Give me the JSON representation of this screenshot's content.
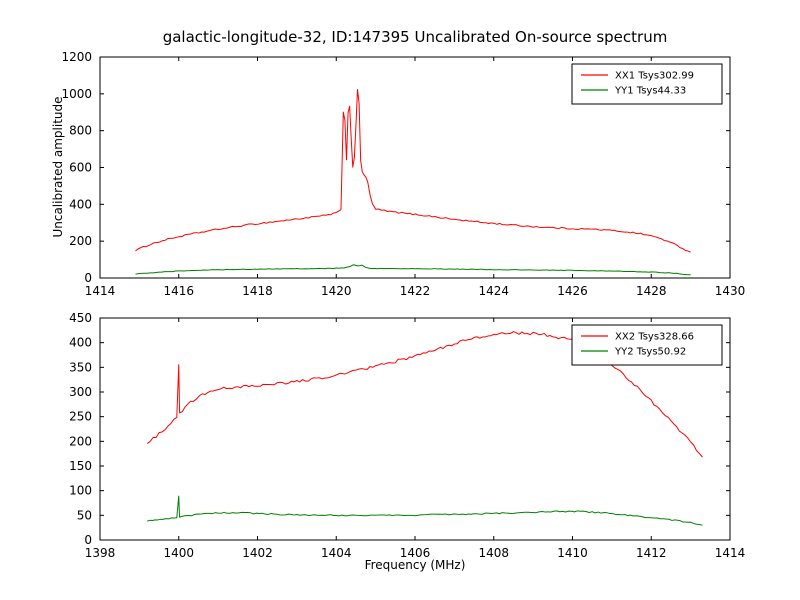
{
  "figure": {
    "title": "galactic-longitude-32, ID:147395 Uncalibrated On-source spectrum",
    "xlabel": "Frequency (MHz)",
    "ylabel": "Uncalibrated amplitude",
    "background": "#ffffff",
    "axis_color": "#000000"
  },
  "chart_data": [
    {
      "type": "line",
      "title": "",
      "xlabel": "",
      "ylabel": "Uncalibrated amplitude",
      "xlim": [
        1414,
        1430
      ],
      "ylim": [
        0,
        1200
      ],
      "xticks": [
        1414,
        1416,
        1418,
        1420,
        1422,
        1424,
        1426,
        1428,
        1430
      ],
      "yticks": [
        0,
        200,
        400,
        600,
        800,
        1000,
        1200
      ],
      "grid": false,
      "legend_position": "upper right",
      "series": [
        {
          "name": "XX1 Tsys302.99",
          "color": "#ff0000",
          "noise": 4,
          "points": [
            [
              1414.9,
              150
            ],
            [
              1415.3,
              185
            ],
            [
              1415.8,
              215
            ],
            [
              1416.3,
              238
            ],
            [
              1417.0,
              265
            ],
            [
              1417.8,
              290
            ],
            [
              1418.6,
              310
            ],
            [
              1419.3,
              328
            ],
            [
              1419.8,
              342
            ],
            [
              1420.05,
              358
            ],
            [
              1420.12,
              368
            ],
            [
              1420.18,
              900
            ],
            [
              1420.22,
              860
            ],
            [
              1420.26,
              640
            ],
            [
              1420.3,
              900
            ],
            [
              1420.34,
              935
            ],
            [
              1420.38,
              760
            ],
            [
              1420.42,
              600
            ],
            [
              1420.46,
              650
            ],
            [
              1420.5,
              830
            ],
            [
              1420.54,
              1020
            ],
            [
              1420.58,
              950
            ],
            [
              1420.62,
              640
            ],
            [
              1420.66,
              580
            ],
            [
              1420.7,
              560
            ],
            [
              1420.75,
              545
            ],
            [
              1420.8,
              520
            ],
            [
              1420.86,
              450
            ],
            [
              1420.92,
              400
            ],
            [
              1421.0,
              375
            ],
            [
              1421.3,
              362
            ],
            [
              1421.8,
              350
            ],
            [
              1422.3,
              338
            ],
            [
              1423.0,
              318
            ],
            [
              1423.8,
              300
            ],
            [
              1424.5,
              287
            ],
            [
              1425.3,
              275
            ],
            [
              1426.0,
              268
            ],
            [
              1426.6,
              264
            ],
            [
              1427.0,
              258
            ],
            [
              1427.4,
              250
            ],
            [
              1427.8,
              238
            ],
            [
              1428.2,
              218
            ],
            [
              1428.6,
              182
            ],
            [
              1429.0,
              140
            ]
          ]
        },
        {
          "name": "YY1 Tsys44.33",
          "color": "#008000",
          "noise": 1.5,
          "points": [
            [
              1414.9,
              22
            ],
            [
              1415.5,
              32
            ],
            [
              1416.2,
              40
            ],
            [
              1417.0,
              45
            ],
            [
              1418.0,
              48
            ],
            [
              1419.0,
              50
            ],
            [
              1419.8,
              52
            ],
            [
              1420.2,
              55
            ],
            [
              1420.35,
              62
            ],
            [
              1420.45,
              72
            ],
            [
              1420.55,
              65
            ],
            [
              1420.65,
              70
            ],
            [
              1420.75,
              58
            ],
            [
              1420.9,
              52
            ],
            [
              1421.5,
              50
            ],
            [
              1422.5,
              50
            ],
            [
              1423.5,
              47
            ],
            [
              1424.5,
              44
            ],
            [
              1425.5,
              42
            ],
            [
              1426.5,
              40
            ],
            [
              1427.3,
              36
            ],
            [
              1428.0,
              32
            ],
            [
              1428.5,
              27
            ],
            [
              1429.0,
              18
            ]
          ]
        }
      ]
    },
    {
      "type": "line",
      "title": "",
      "xlabel": "Frequency (MHz)",
      "ylabel": "",
      "xlim": [
        1398,
        1414
      ],
      "ylim": [
        0,
        450
      ],
      "xticks": [
        1398,
        1400,
        1402,
        1404,
        1406,
        1408,
        1410,
        1412,
        1414
      ],
      "yticks": [
        0,
        50,
        100,
        150,
        200,
        250,
        300,
        350,
        400,
        450
      ],
      "grid": false,
      "legend_position": "upper right",
      "series": [
        {
          "name": "XX2 Tsys328.66",
          "color": "#ff0000",
          "noise": 3,
          "points": [
            [
              1399.2,
              196
            ],
            [
              1399.5,
              215
            ],
            [
              1399.8,
              236
            ],
            [
              1399.95,
              250
            ],
            [
              1400.0,
              355
            ],
            [
              1400.02,
              258
            ],
            [
              1400.3,
              278
            ],
            [
              1400.6,
              294
            ],
            [
              1401.0,
              305
            ],
            [
              1401.5,
              311
            ],
            [
              1402.0,
              314
            ],
            [
              1402.5,
              317
            ],
            [
              1403.0,
              321
            ],
            [
              1403.5,
              328
            ],
            [
              1404.0,
              334
            ],
            [
              1404.5,
              343
            ],
            [
              1405.0,
              352
            ],
            [
              1405.5,
              362
            ],
            [
              1406.0,
              373
            ],
            [
              1406.5,
              385
            ],
            [
              1407.0,
              398
            ],
            [
              1407.5,
              409
            ],
            [
              1408.0,
              417
            ],
            [
              1408.5,
              420
            ],
            [
              1409.0,
              418
            ],
            [
              1409.5,
              414
            ],
            [
              1410.0,
              404
            ],
            [
              1410.5,
              386
            ],
            [
              1411.0,
              356
            ],
            [
              1411.5,
              320
            ],
            [
              1412.0,
              282
            ],
            [
              1412.5,
              242
            ],
            [
              1413.0,
              198
            ],
            [
              1413.3,
              168
            ]
          ]
        },
        {
          "name": "YY2 Tsys50.92",
          "color": "#008000",
          "noise": 1.2,
          "points": [
            [
              1399.2,
              38
            ],
            [
              1399.6,
              43
            ],
            [
              1399.95,
              45
            ],
            [
              1400.0,
              90
            ],
            [
              1400.02,
              47
            ],
            [
              1400.4,
              51
            ],
            [
              1401.0,
              55
            ],
            [
              1401.6,
              55
            ],
            [
              1402.2,
              53
            ],
            [
              1403.0,
              51
            ],
            [
              1404.0,
              50
            ],
            [
              1405.0,
              50
            ],
            [
              1406.0,
              50
            ],
            [
              1406.4,
              53
            ],
            [
              1407.0,
              52
            ],
            [
              1408.0,
              54
            ],
            [
              1409.0,
              56
            ],
            [
              1409.6,
              58
            ],
            [
              1410.2,
              58
            ],
            [
              1410.8,
              55
            ],
            [
              1411.4,
              50
            ],
            [
              1412.0,
              45
            ],
            [
              1412.6,
              40
            ],
            [
              1413.0,
              35
            ],
            [
              1413.3,
              30
            ]
          ]
        }
      ]
    }
  ]
}
